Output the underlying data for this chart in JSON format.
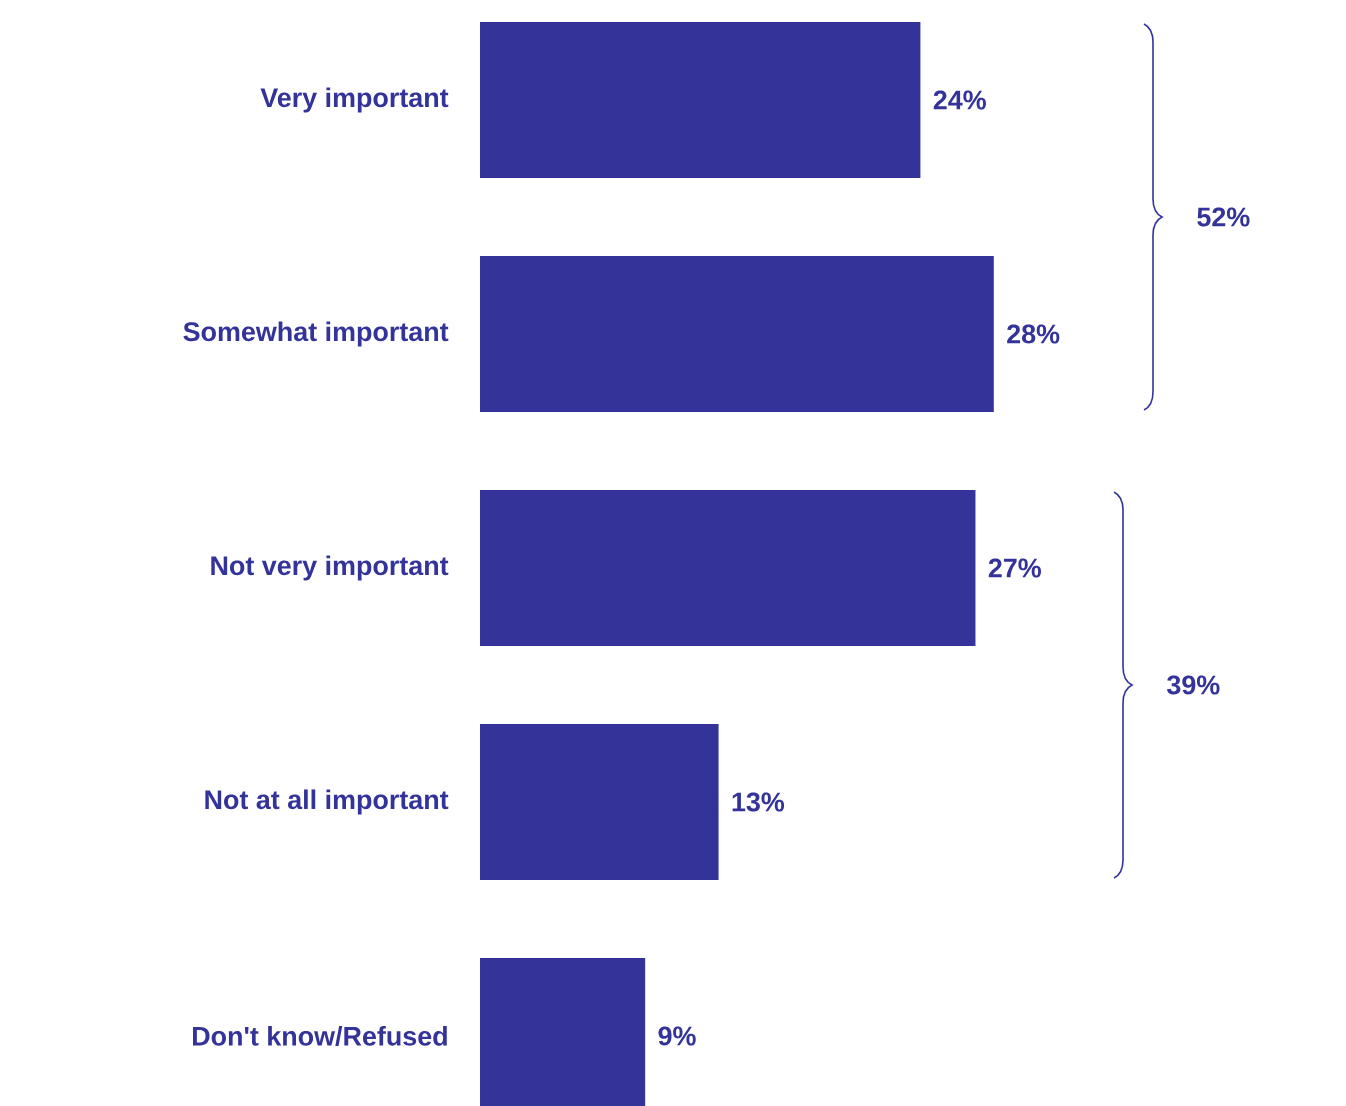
{
  "chart_data": {
    "type": "bar",
    "orientation": "horizontal",
    "categories": [
      "Very important",
      "Somewhat important",
      "Not very important",
      "Not at all important",
      "Don't know/Refused"
    ],
    "values": [
      24,
      28,
      27,
      13,
      9
    ],
    "value_labels": [
      "24%",
      "28%",
      "27%",
      "13%",
      "9%"
    ],
    "color": "#333399",
    "annotations": [
      "52%",
      "39%"
    ]
  }
}
